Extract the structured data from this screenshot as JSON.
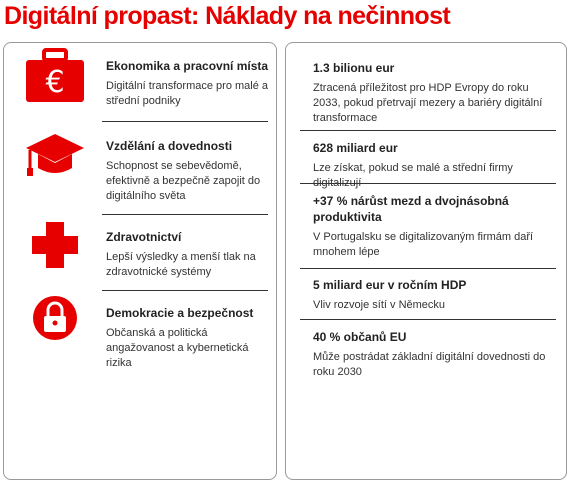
{
  "title": "Digitální propast: Náklady na nečinnost",
  "left_items": [
    {
      "heading": "Ekonomika a pracovní místa",
      "text": "Digitální transformace pro malé a střední podniky"
    },
    {
      "heading": "Vzdělání a dovednosti",
      "text": "Schopnost se sebevědomě, efektivně a bezpečně zapojit do digitálního světa"
    },
    {
      "heading": "Zdravotnictví",
      "text": "Lepší výsledky a menší tlak na zdravotnické systémy"
    },
    {
      "heading": "Demokracie a bezpečnost",
      "text": "Občanská a politická angažovanost a kybernetická rizika"
    }
  ],
  "right_items": [
    {
      "heading": "1.3 bilionu eur",
      "text": "Ztracená příležitost pro HDP Evropy do roku 2033, pokud přetrvají mezery a bariéry digitální transformace"
    },
    {
      "heading": "628 miliard eur",
      "text": "Lze získat, pokud se malé a střední firmy digitalizují"
    },
    {
      "heading": "+37 % nárůst mezd a dvojnásobná produktivita",
      "text": "V Portugalsku se digitalizovaným firmám daří mnohem lépe"
    },
    {
      "heading": "5 miliard eur v ročním HDP",
      "text": "Vliv rozvoje sítí v Německu"
    },
    {
      "heading": "40 % občanů EU",
      "text": "Může postrádat základní digitální dovednosti do roku 2030"
    }
  ]
}
